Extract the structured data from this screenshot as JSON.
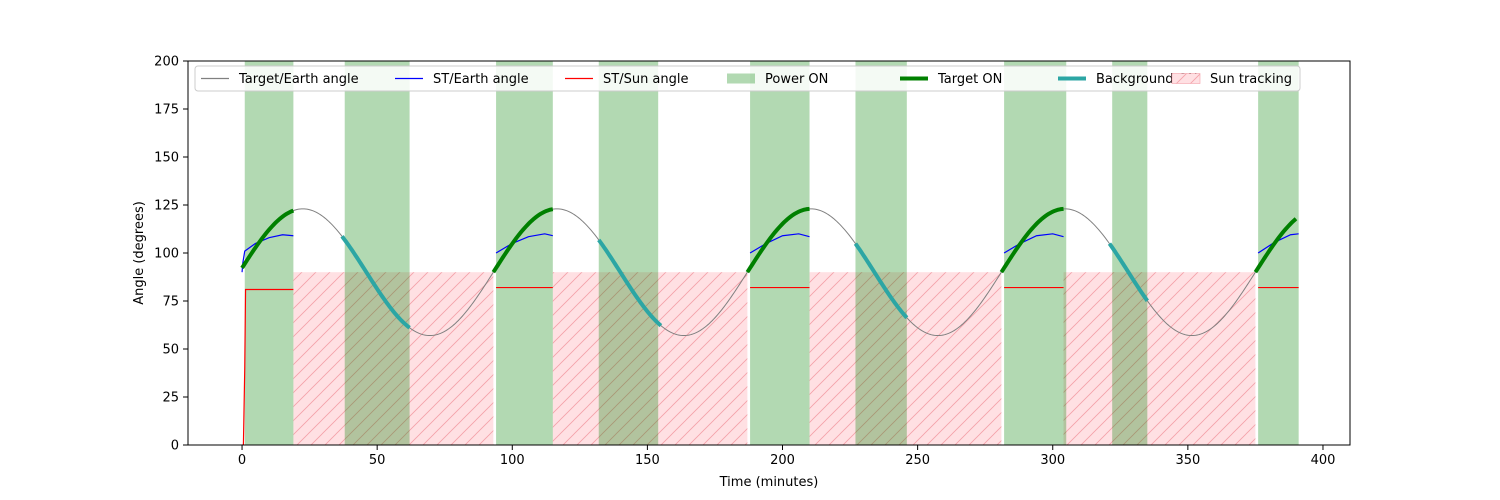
{
  "chart_data": {
    "type": "line",
    "xlabel": "Time (minutes)",
    "ylabel": "Angle (degrees)",
    "xlim": [
      -20,
      410
    ],
    "ylim": [
      0,
      200
    ],
    "xticks": [
      0,
      50,
      100,
      150,
      200,
      250,
      300,
      350,
      400
    ],
    "yticks": [
      0,
      25,
      50,
      75,
      100,
      125,
      150,
      175,
      200
    ],
    "grid": false,
    "legend_position": "top",
    "colors": {
      "target_earth": "#808080",
      "st_earth": "#0000ff",
      "st_sun": "#ff0000",
      "power_on": "#b3d9b3",
      "target_on": "#008000",
      "background_on": "#2ca6a4",
      "sun_tracking_fill": "#ffe0e3",
      "sun_tracking_hatch": "#f4a0a8"
    },
    "legend": [
      {
        "key": "target_earth",
        "label": "Target/Earth angle",
        "kind": "line"
      },
      {
        "key": "st_earth",
        "label": "ST/Earth angle",
        "kind": "line"
      },
      {
        "key": "st_sun",
        "label": "ST/Sun angle",
        "kind": "line"
      },
      {
        "key": "power_on",
        "label": "Power ON",
        "kind": "patch"
      },
      {
        "key": "target_on",
        "label": "Target ON",
        "kind": "thick"
      },
      {
        "key": "background_on",
        "label": "Background ON",
        "kind": "thick"
      },
      {
        "key": "sun_tracking",
        "label": "Sun tracking",
        "kind": "hatch"
      }
    ],
    "target_earth_curve": {
      "period_minutes": 94,
      "mean": 90,
      "amplitude": 33,
      "peak_time": 22.5,
      "x_start": 0,
      "x_end": 390
    },
    "power_on_intervals": [
      [
        1,
        19
      ],
      [
        38,
        62
      ],
      [
        94,
        115
      ],
      [
        132,
        154
      ],
      [
        188,
        210
      ],
      [
        227,
        246
      ],
      [
        282,
        305
      ],
      [
        322,
        335
      ],
      [
        376,
        391
      ]
    ],
    "target_on_intervals": [
      [
        0,
        19
      ],
      [
        93,
        115
      ],
      [
        187,
        210
      ],
      [
        281,
        304
      ],
      [
        375,
        390
      ]
    ],
    "background_on_intervals": [
      [
        37,
        62
      ],
      [
        132,
        155
      ],
      [
        227,
        246
      ],
      [
        321,
        335
      ]
    ],
    "sun_tracking_intervals": [
      [
        19,
        93
      ],
      [
        115,
        187
      ],
      [
        210,
        281
      ],
      [
        304,
        375
      ]
    ],
    "sun_tracking_level": 90,
    "st_earth_segments": [
      {
        "x": [
          0,
          0.3,
          1,
          5,
          10,
          15,
          19
        ],
        "y": [
          90,
          95,
          101,
          105,
          108,
          109.5,
          109
        ]
      },
      {
        "x": [
          94,
          100,
          106,
          112,
          115
        ],
        "y": [
          100,
          105,
          108.5,
          110,
          109
        ]
      },
      {
        "x": [
          188,
          194,
          200,
          206,
          210
        ],
        "y": [
          100,
          105,
          109,
          110,
          108.5
        ]
      },
      {
        "x": [
          282,
          288,
          294,
          300,
          304
        ],
        "y": [
          100,
          105,
          109,
          110,
          108.5
        ]
      },
      {
        "x": [
          376,
          382,
          388,
          391
        ],
        "y": [
          100,
          105.5,
          109.5,
          110
        ]
      }
    ],
    "st_sun_segments": [
      {
        "x": [
          0,
          0.5,
          1,
          1.3,
          19
        ],
        "y": [
          0,
          0,
          40,
          81,
          81
        ]
      },
      {
        "x": [
          94,
          115
        ],
        "y": [
          82,
          82
        ]
      },
      {
        "x": [
          188,
          210
        ],
        "y": [
          82,
          82
        ]
      },
      {
        "x": [
          282,
          304
        ],
        "y": [
          82,
          82
        ]
      },
      {
        "x": [
          376,
          391
        ],
        "y": [
          82,
          82
        ]
      }
    ]
  }
}
